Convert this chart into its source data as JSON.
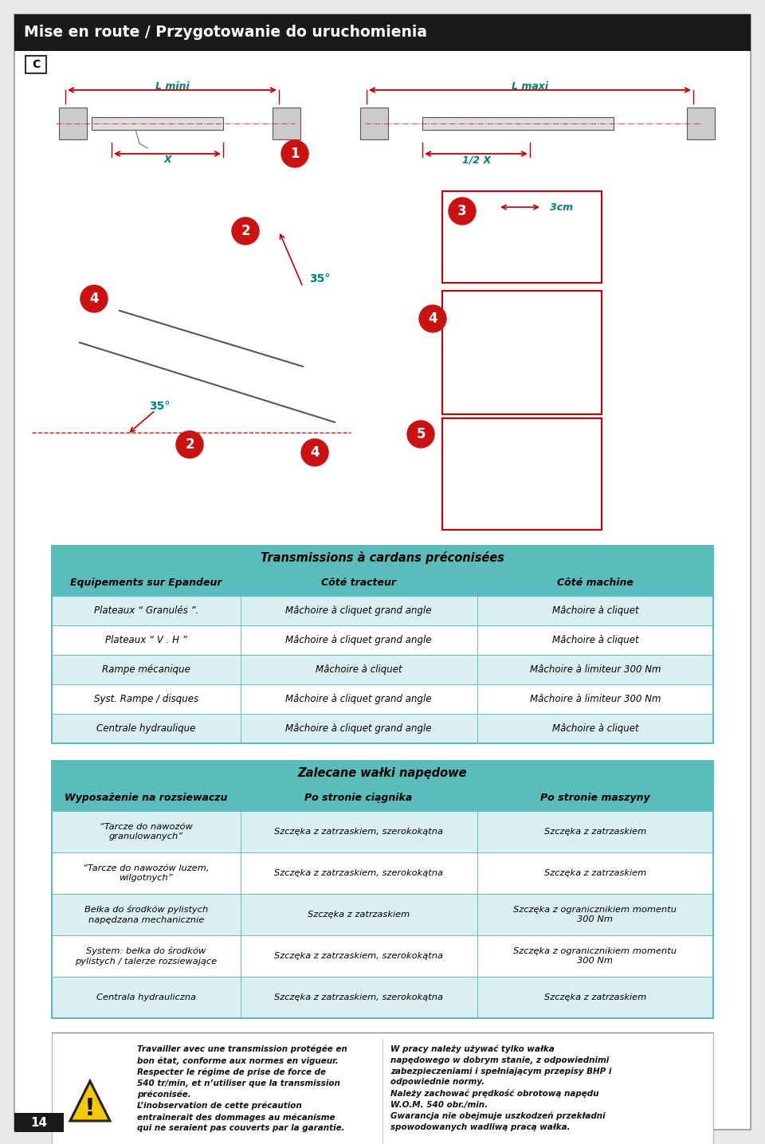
{
  "page_title": "Mise en route / Przygotowanie do uruchomienia",
  "page_number": "14",
  "header_bg": "#1a1a1a",
  "header_text_color": "#ffffff",
  "page_bg": "#ffffff",
  "table1_title": "Transmissions à cardans préconisées",
  "table1_header_bg": "#5bbcbc",
  "table1_header_text": "#000000",
  "table1_row_bg1": "#daf0f0",
  "table1_row_bg2": "#ffffff",
  "table1_border": "#5bbcbc",
  "table1_col0_label": "Equipements sur Epandeur",
  "table1_col1_label": "Côté tracteur",
  "table1_col2_label": "Côté machine",
  "table1_rows": [
    [
      "Plateaux “ Granulés ”.",
      "Mâchoire à cliquet grand angle",
      "Mâchoire à cliquet"
    ],
    [
      "Plateaux “ V . H ”",
      "Mâchoire à cliquet grand angle",
      "Mâchoire à cliquet"
    ],
    [
      "Rampe mécanique",
      "Mâchoire à cliquet",
      "Mâchoire à limiteur 300 Nm"
    ],
    [
      "Syst. Rampe / disques",
      "Mâchoire à cliquet grand angle",
      "Mâchoire à limiteur 300 Nm"
    ],
    [
      "Centrale hydraulique",
      "Mâchoire à cliquet grand angle",
      "Mâchoire à cliquet"
    ]
  ],
  "table2_title": "Zalecane wałki napędowe",
  "table2_header_bg": "#5bbcbc",
  "table2_header_text": "#000000",
  "table2_row_bg1": "#daf0f0",
  "table2_row_bg2": "#ffffff",
  "table2_border": "#5bbcbc",
  "table2_col0_label": "Wyposażenie na rozsiewaczu",
  "table2_col1_label": "Po stronie ciągnika",
  "table2_col2_label": "Po stronie maszyny",
  "table2_rows": [
    [
      "“Tarcze do nawozów\ngranulowanych”",
      "Szczęka z zatrzaskiem, szerokokątna",
      "Szczęka z zatrzaskiem"
    ],
    [
      "“Tarcze do nawozów luzem,\nwilgotnych”",
      "Szczęka z zatrzaskiem, szerokokątna",
      "Szczęka z zatrzaskiem"
    ],
    [
      "Bełka do środków pylistych\nnapędzana mechanicznie",
      "Szczęka z zatrzaskiem",
      "Szczęka z ogranicznikiem momentu\n300 Nm"
    ],
    [
      "System: bełka do środków\npylistych / talerze rozsiewające",
      "Szczęka z zatrzaskiem, szerokokątna",
      "Szczęka z ogranicznikiem momentu\n300 Nm"
    ],
    [
      "Centrala hydrauliczna",
      "Szczęka z zatrzaskiem, szerokokątna",
      "Szczęka z zatrzaskiem"
    ]
  ],
  "warning_fr": "Travailler avec une transmission protégée en\nbon état, conforme aux normes en vigueur.\nRespecter le régime de prise de force de\n540 tr/min, et n’utiliser que la transmission\npréconisée.\nL’inobservation de cette précaution\nentrainerait des dommages au mécanisme\nqui ne seraient pas couverts par la garantie.",
  "warning_pl": "W pracy należy używać tylko wałka\nnapędowego w dobrym stanie, z odpowiednimi\nzabezpieczeniami i spełniającym przepisy BHP i\nodpowiednie normy.\nNależy zachować prędkość obrotową napędu\nW.O.M. 540 obr./min.\nGwarancja nie obejmuje uszkodzeń przekładni\nspowodowanych wadliwą pracą wałka.",
  "diag_label_lmini": "L mini",
  "diag_label_lmaxi": "L maxi",
  "diag_label_x": "X",
  "diag_label_halfx": "1/2 X",
  "diag_label_35": "35°",
  "diag_label_3cm": "3cm",
  "diag_teal": "#008080",
  "diag_red": "#cc1111",
  "diag_arrow_color": "#cc0000"
}
